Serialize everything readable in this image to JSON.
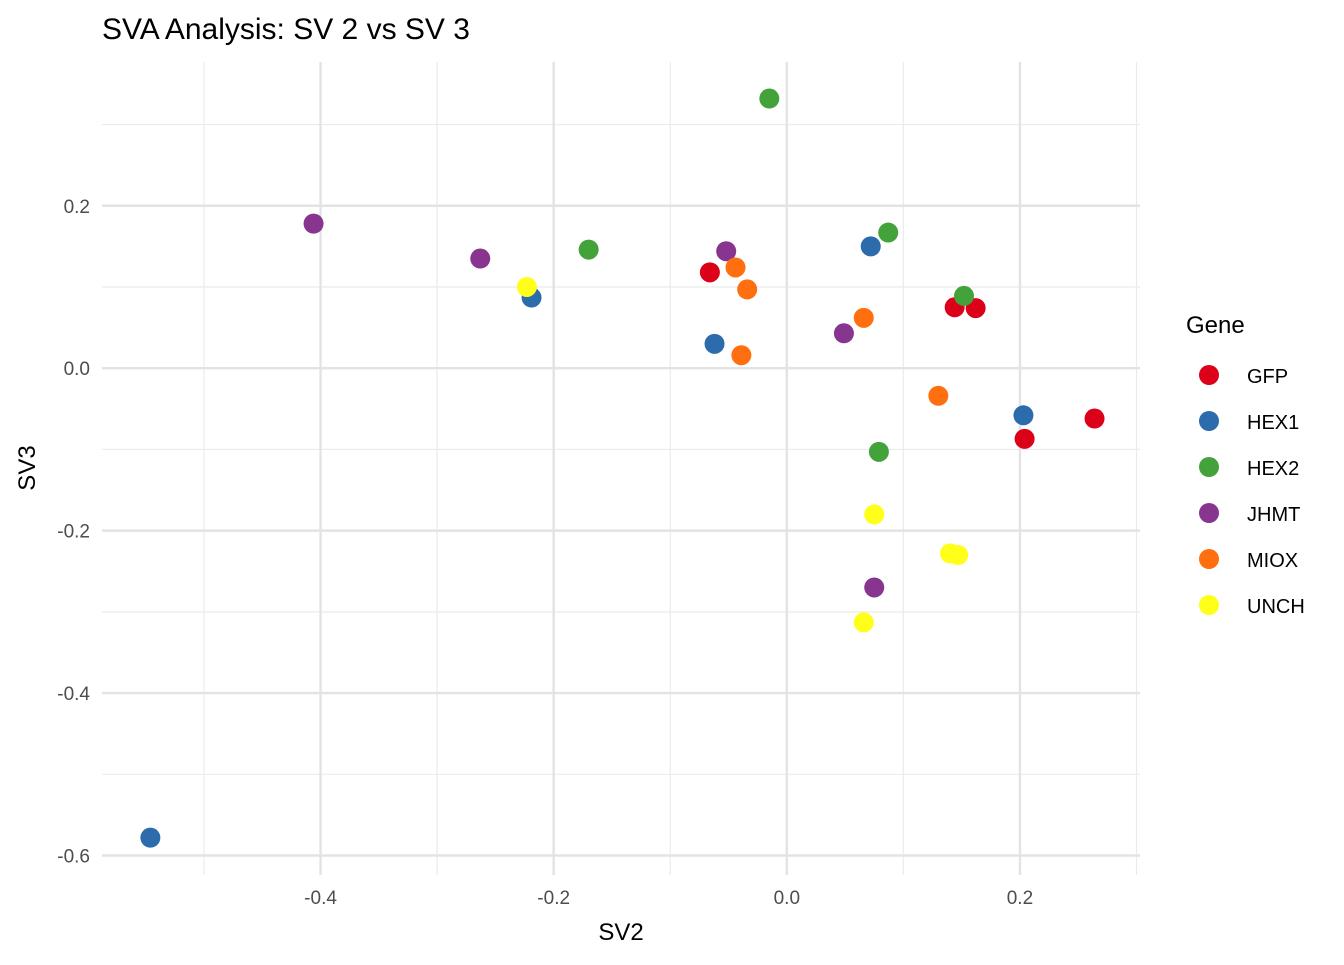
{
  "chart_data": {
    "type": "scatter",
    "title": "SVA Analysis: SV 2  vs SV 3",
    "xlabel": "SV2",
    "ylabel": "SV3",
    "xlim": [
      -0.5875,
      0.303
    ],
    "ylim": [
      -0.624,
      0.377
    ],
    "x_ticks": [
      -0.4,
      -0.2,
      0.0,
      0.2
    ],
    "x_tick_labels": [
      "-0.4",
      "-0.2",
      "0.0",
      "0.2"
    ],
    "y_ticks": [
      0.2,
      0.0,
      -0.2,
      -0.4,
      -0.6
    ],
    "y_tick_labels": [
      "0.2",
      "0.0",
      "-0.2",
      "-0.4",
      "-0.6"
    ],
    "x_minor": [
      -0.5,
      -0.3,
      -0.1,
      0.1,
      0.3
    ],
    "y_minor": [
      0.3,
      0.1,
      -0.1,
      -0.3,
      -0.5
    ],
    "grid": true,
    "legend": {
      "title": "Gene",
      "position": "right"
    },
    "series": [
      {
        "name": "GFP",
        "color": "#DC0019",
        "points": [
          [
            -0.066,
            0.118
          ],
          [
            0.144,
            0.075
          ],
          [
            0.162,
            0.074
          ],
          [
            0.204,
            -0.087
          ],
          [
            0.264,
            -0.062
          ]
        ]
      },
      {
        "name": "HEX1",
        "color": "#2C6BAC",
        "points": [
          [
            -0.546,
            -0.578
          ],
          [
            -0.219,
            0.087
          ],
          [
            -0.062,
            0.03
          ],
          [
            0.072,
            0.15
          ],
          [
            0.203,
            -0.058
          ]
        ]
      },
      {
        "name": "HEX2",
        "color": "#43A33A",
        "points": [
          [
            -0.015,
            0.332
          ],
          [
            -0.17,
            0.146
          ],
          [
            0.087,
            0.167
          ],
          [
            0.152,
            0.089
          ],
          [
            0.079,
            -0.103
          ]
        ]
      },
      {
        "name": "JHMT",
        "color": "#87358F",
        "points": [
          [
            -0.406,
            0.178
          ],
          [
            -0.263,
            0.135
          ],
          [
            -0.052,
            0.144
          ],
          [
            0.049,
            0.043
          ],
          [
            0.075,
            -0.27
          ]
        ]
      },
      {
        "name": "MIOX",
        "color": "#FF6E0F",
        "points": [
          [
            -0.044,
            0.124
          ],
          [
            -0.034,
            0.097
          ],
          [
            -0.039,
            0.016
          ],
          [
            0.066,
            0.062
          ],
          [
            0.13,
            -0.034
          ]
        ]
      },
      {
        "name": "UNCH",
        "color": "#FFFF1A",
        "points": [
          [
            -0.223,
            0.1
          ],
          [
            0.075,
            -0.18
          ],
          [
            0.14,
            -0.228
          ],
          [
            0.147,
            -0.23
          ],
          [
            0.066,
            -0.313
          ]
        ]
      }
    ]
  }
}
